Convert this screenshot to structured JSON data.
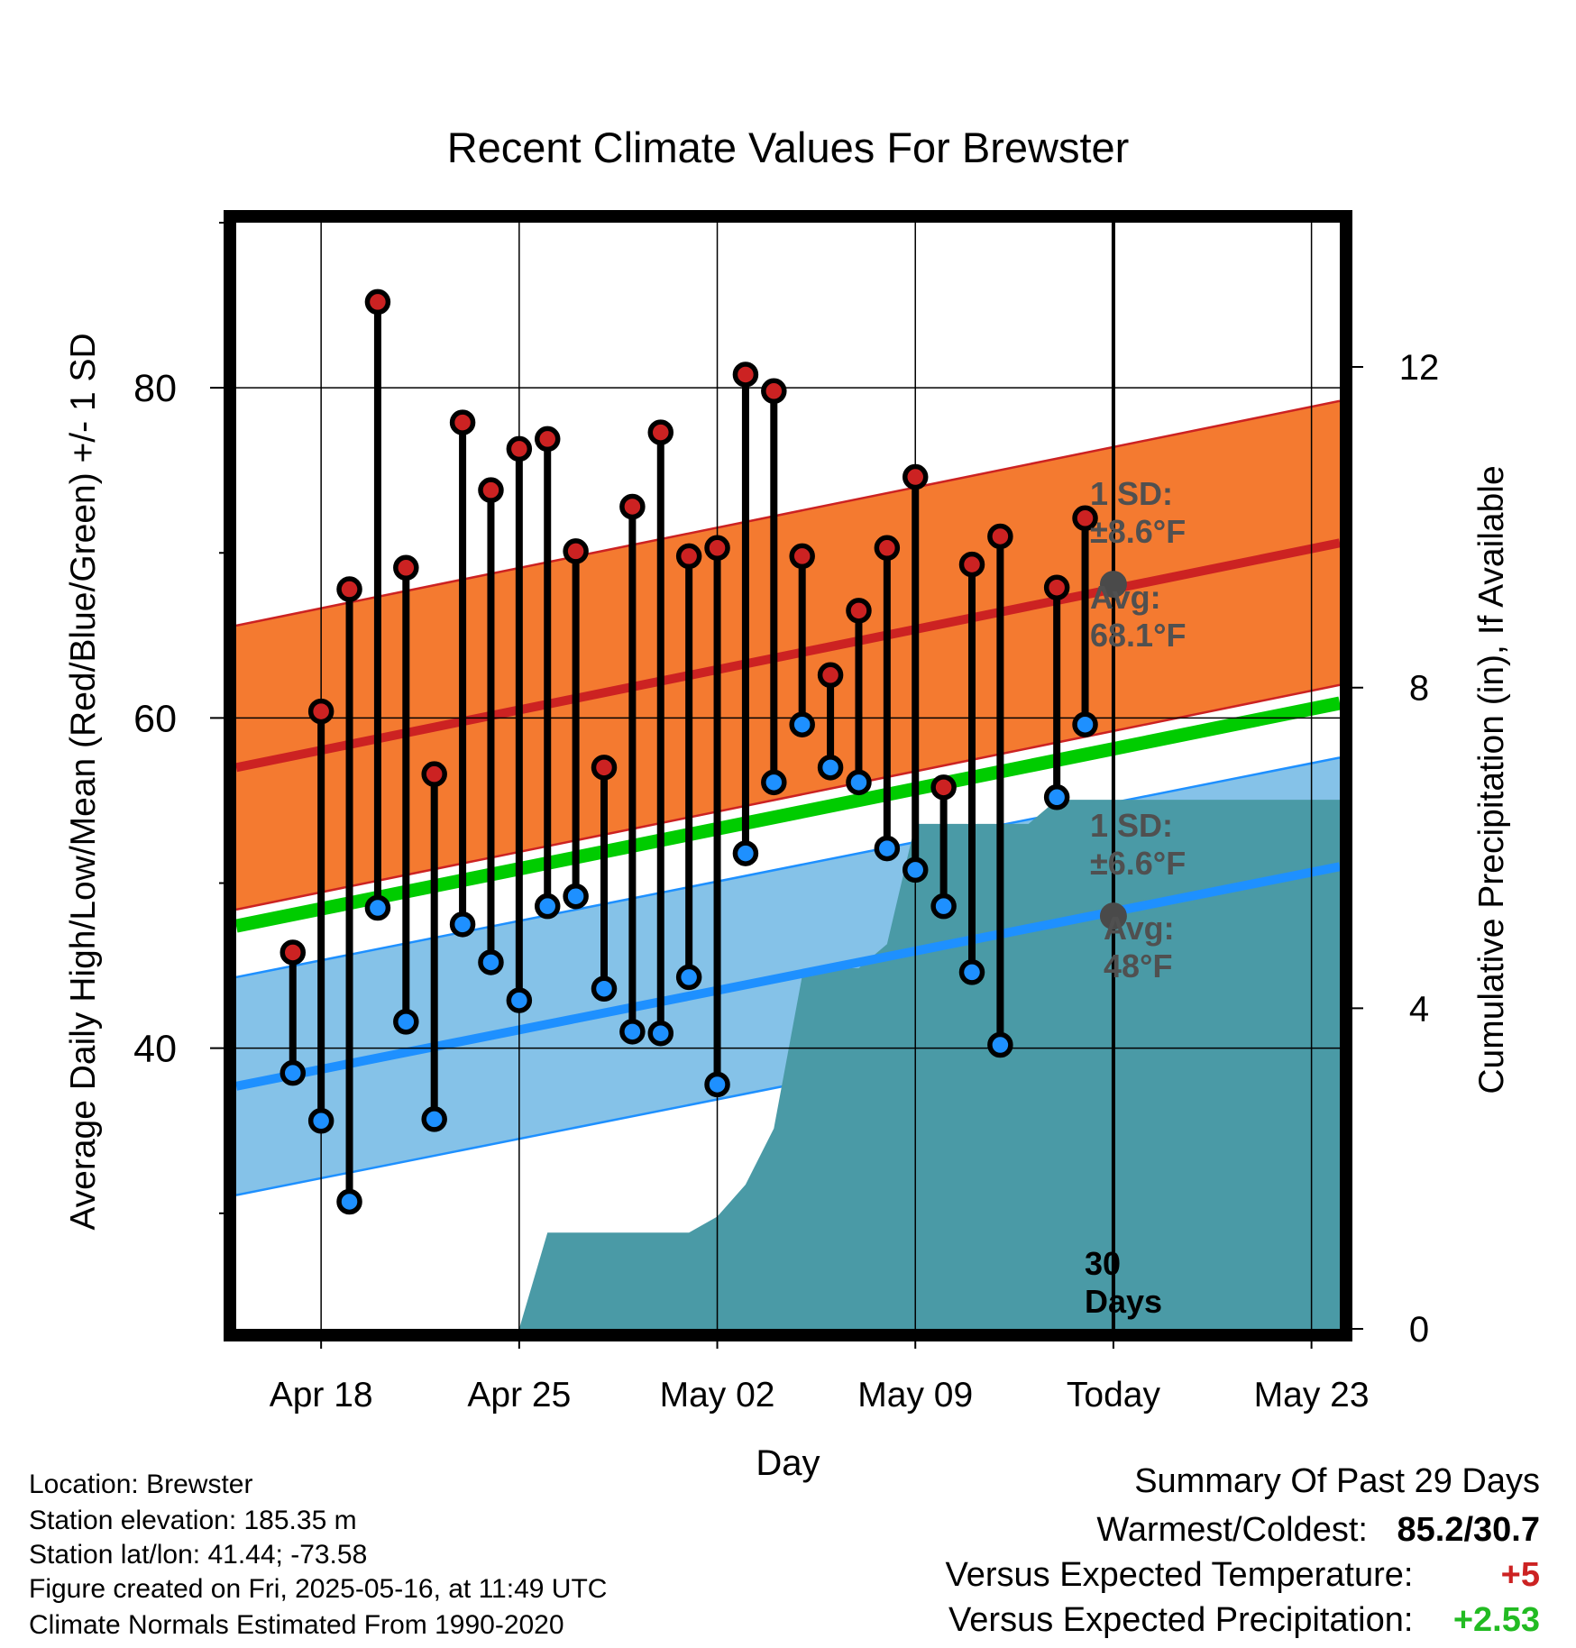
{
  "chart_data": {
    "type": "line",
    "title": "Recent Climate Values For Brewster",
    "xlabel": "Day",
    "ylabel": "Average Daily High/Low/Mean (Red/Blue/Green) +/- 1 SD",
    "y2label": "Cumulative Precipitation (in), If Available",
    "x_tick_labels": [
      "Apr 18",
      "Apr 25",
      "May 02",
      "May 09",
      "Today",
      "May 23"
    ],
    "x_ticks": [
      "2025-04-18",
      "2025-04-25",
      "2025-05-02",
      "2025-05-09",
      "2025-05-16",
      "2025-05-23"
    ],
    "xlim": [
      "2025-04-15",
      "2025-05-24"
    ],
    "ylim": [
      23,
      90
    ],
    "y_ticks": [
      40,
      60,
      80
    ],
    "y2lim": [
      0,
      13.8
    ],
    "y2_ticks": [
      0,
      4,
      8,
      12
    ],
    "grid": true,
    "today": "2025-05-16",
    "series": [
      {
        "name": "High",
        "color": "#cc2222",
        "x": [
          "2025-04-17",
          "2025-04-18",
          "2025-04-19",
          "2025-04-20",
          "2025-04-21",
          "2025-04-22",
          "2025-04-23",
          "2025-04-24",
          "2025-04-25",
          "2025-04-26",
          "2025-04-27",
          "2025-04-28",
          "2025-04-29",
          "2025-04-30",
          "2025-05-01",
          "2025-05-02",
          "2025-05-03",
          "2025-05-04",
          "2025-05-05",
          "2025-05-06",
          "2025-05-07",
          "2025-05-08",
          "2025-05-09",
          "2025-05-10",
          "2025-05-11",
          "2025-05-12",
          "2025-05-14",
          "2025-05-15"
        ],
        "values": [
          45.8,
          60.4,
          67.8,
          85.2,
          69.1,
          56.6,
          77.9,
          73.8,
          76.3,
          76.9,
          70.1,
          57.0,
          72.8,
          77.3,
          69.8,
          70.3,
          80.8,
          79.8,
          69.8,
          62.6,
          66.5,
          70.3,
          74.6,
          55.8,
          69.3,
          71.0,
          67.9,
          72.1
        ]
      },
      {
        "name": "Low",
        "color": "#1e90ff",
        "x": [
          "2025-04-17",
          "2025-04-18",
          "2025-04-19",
          "2025-04-20",
          "2025-04-21",
          "2025-04-22",
          "2025-04-23",
          "2025-04-24",
          "2025-04-25",
          "2025-04-26",
          "2025-04-27",
          "2025-04-28",
          "2025-04-29",
          "2025-04-30",
          "2025-05-01",
          "2025-05-02",
          "2025-05-03",
          "2025-05-04",
          "2025-05-05",
          "2025-05-06",
          "2025-05-07",
          "2025-05-08",
          "2025-05-09",
          "2025-05-10",
          "2025-05-11",
          "2025-05-12",
          "2025-05-14",
          "2025-05-15"
        ],
        "values": [
          38.5,
          35.6,
          30.7,
          48.5,
          41.6,
          35.7,
          47.5,
          45.2,
          42.9,
          48.6,
          49.2,
          43.6,
          41.0,
          40.9,
          44.3,
          37.8,
          51.8,
          56.1,
          59.6,
          57.0,
          56.1,
          52.1,
          50.8,
          48.6,
          44.6,
          40.2,
          55.2,
          59.6
        ]
      },
      {
        "name": "Normal High",
        "color": "#cc2222",
        "x": [
          "2025-04-15",
          "2025-05-24"
        ],
        "values": [
          57.0,
          70.6
        ],
        "sd": 8.6
      },
      {
        "name": "Normal Low",
        "color": "#1e90ff",
        "x": [
          "2025-04-15",
          "2025-05-24"
        ],
        "values": [
          37.7,
          51.0
        ],
        "sd": 6.6
      },
      {
        "name": "Normal Mean",
        "color": "#00cc00",
        "x": [
          "2025-04-15",
          "2025-05-24"
        ],
        "values": [
          47.4,
          60.9
        ]
      },
      {
        "name": "Cumulative Precipitation",
        "color": "#4a9aa6",
        "axis": "y2",
        "x": [
          "2025-04-24",
          "2025-04-25",
          "2025-04-26",
          "2025-04-27",
          "2025-04-28",
          "2025-04-29",
          "2025-04-30",
          "2025-05-01",
          "2025-05-02",
          "2025-05-03",
          "2025-05-04",
          "2025-05-05",
          "2025-05-06",
          "2025-05-07",
          "2025-05-08",
          "2025-05-09",
          "2025-05-10",
          "2025-05-11",
          "2025-05-12",
          "2025-05-13",
          "2025-05-14",
          "2025-05-24"
        ],
        "values": [
          0,
          0,
          1.2,
          1.2,
          1.2,
          1.2,
          1.2,
          1.2,
          1.4,
          1.8,
          2.5,
          4.4,
          4.5,
          4.5,
          4.8,
          6.3,
          6.3,
          6.3,
          6.3,
          6.3,
          6.6,
          6.6
        ]
      }
    ],
    "annotations": [
      {
        "line1": "1 SD:",
        "line2": "±8.6°F"
      },
      {
        "line1": "Avg:",
        "line2": "68.1°F"
      },
      {
        "line1": "1 SD:",
        "line2": "±6.6°F"
      },
      {
        "line1": "Avg:",
        "line2": "48°F"
      },
      {
        "line1": "30",
        "line2": "Days"
      }
    ],
    "today_marks": [
      {
        "series": "Normal High",
        "value": 68.1
      },
      {
        "series": "Normal Low",
        "value": 48.0
      }
    ]
  },
  "footer": {
    "location": "Location: Brewster",
    "elevation": "Station elevation: 185.35 m",
    "latlon": "Station lat/lon: 41.44; -73.58",
    "created": "Figure created on Fri, 2025-05-16, at 11:49 UTC",
    "normals": "Climate Normals Estimated From 1990-2020"
  },
  "summary": {
    "title": "Summary Of Past 29 Days",
    "warm_cold_label": "Warmest/Coldest:",
    "warm_cold_value": "85.2/30.7",
    "temp_label": "Versus Expected Temperature:",
    "temp_value": "+5",
    "temp_color": "#cc2222",
    "precip_label": "Versus Expected Precipitation:",
    "precip_value": "+2.53",
    "precip_color": "#22bb22"
  },
  "colors": {
    "high_band": "#f47a30",
    "low_band": "#85c2e8",
    "high_line": "#cc2222",
    "low_line": "#1e90ff",
    "mean_line": "#00cc00",
    "precip_fill": "#4a9aa6",
    "annotation_text": "#505050"
  }
}
